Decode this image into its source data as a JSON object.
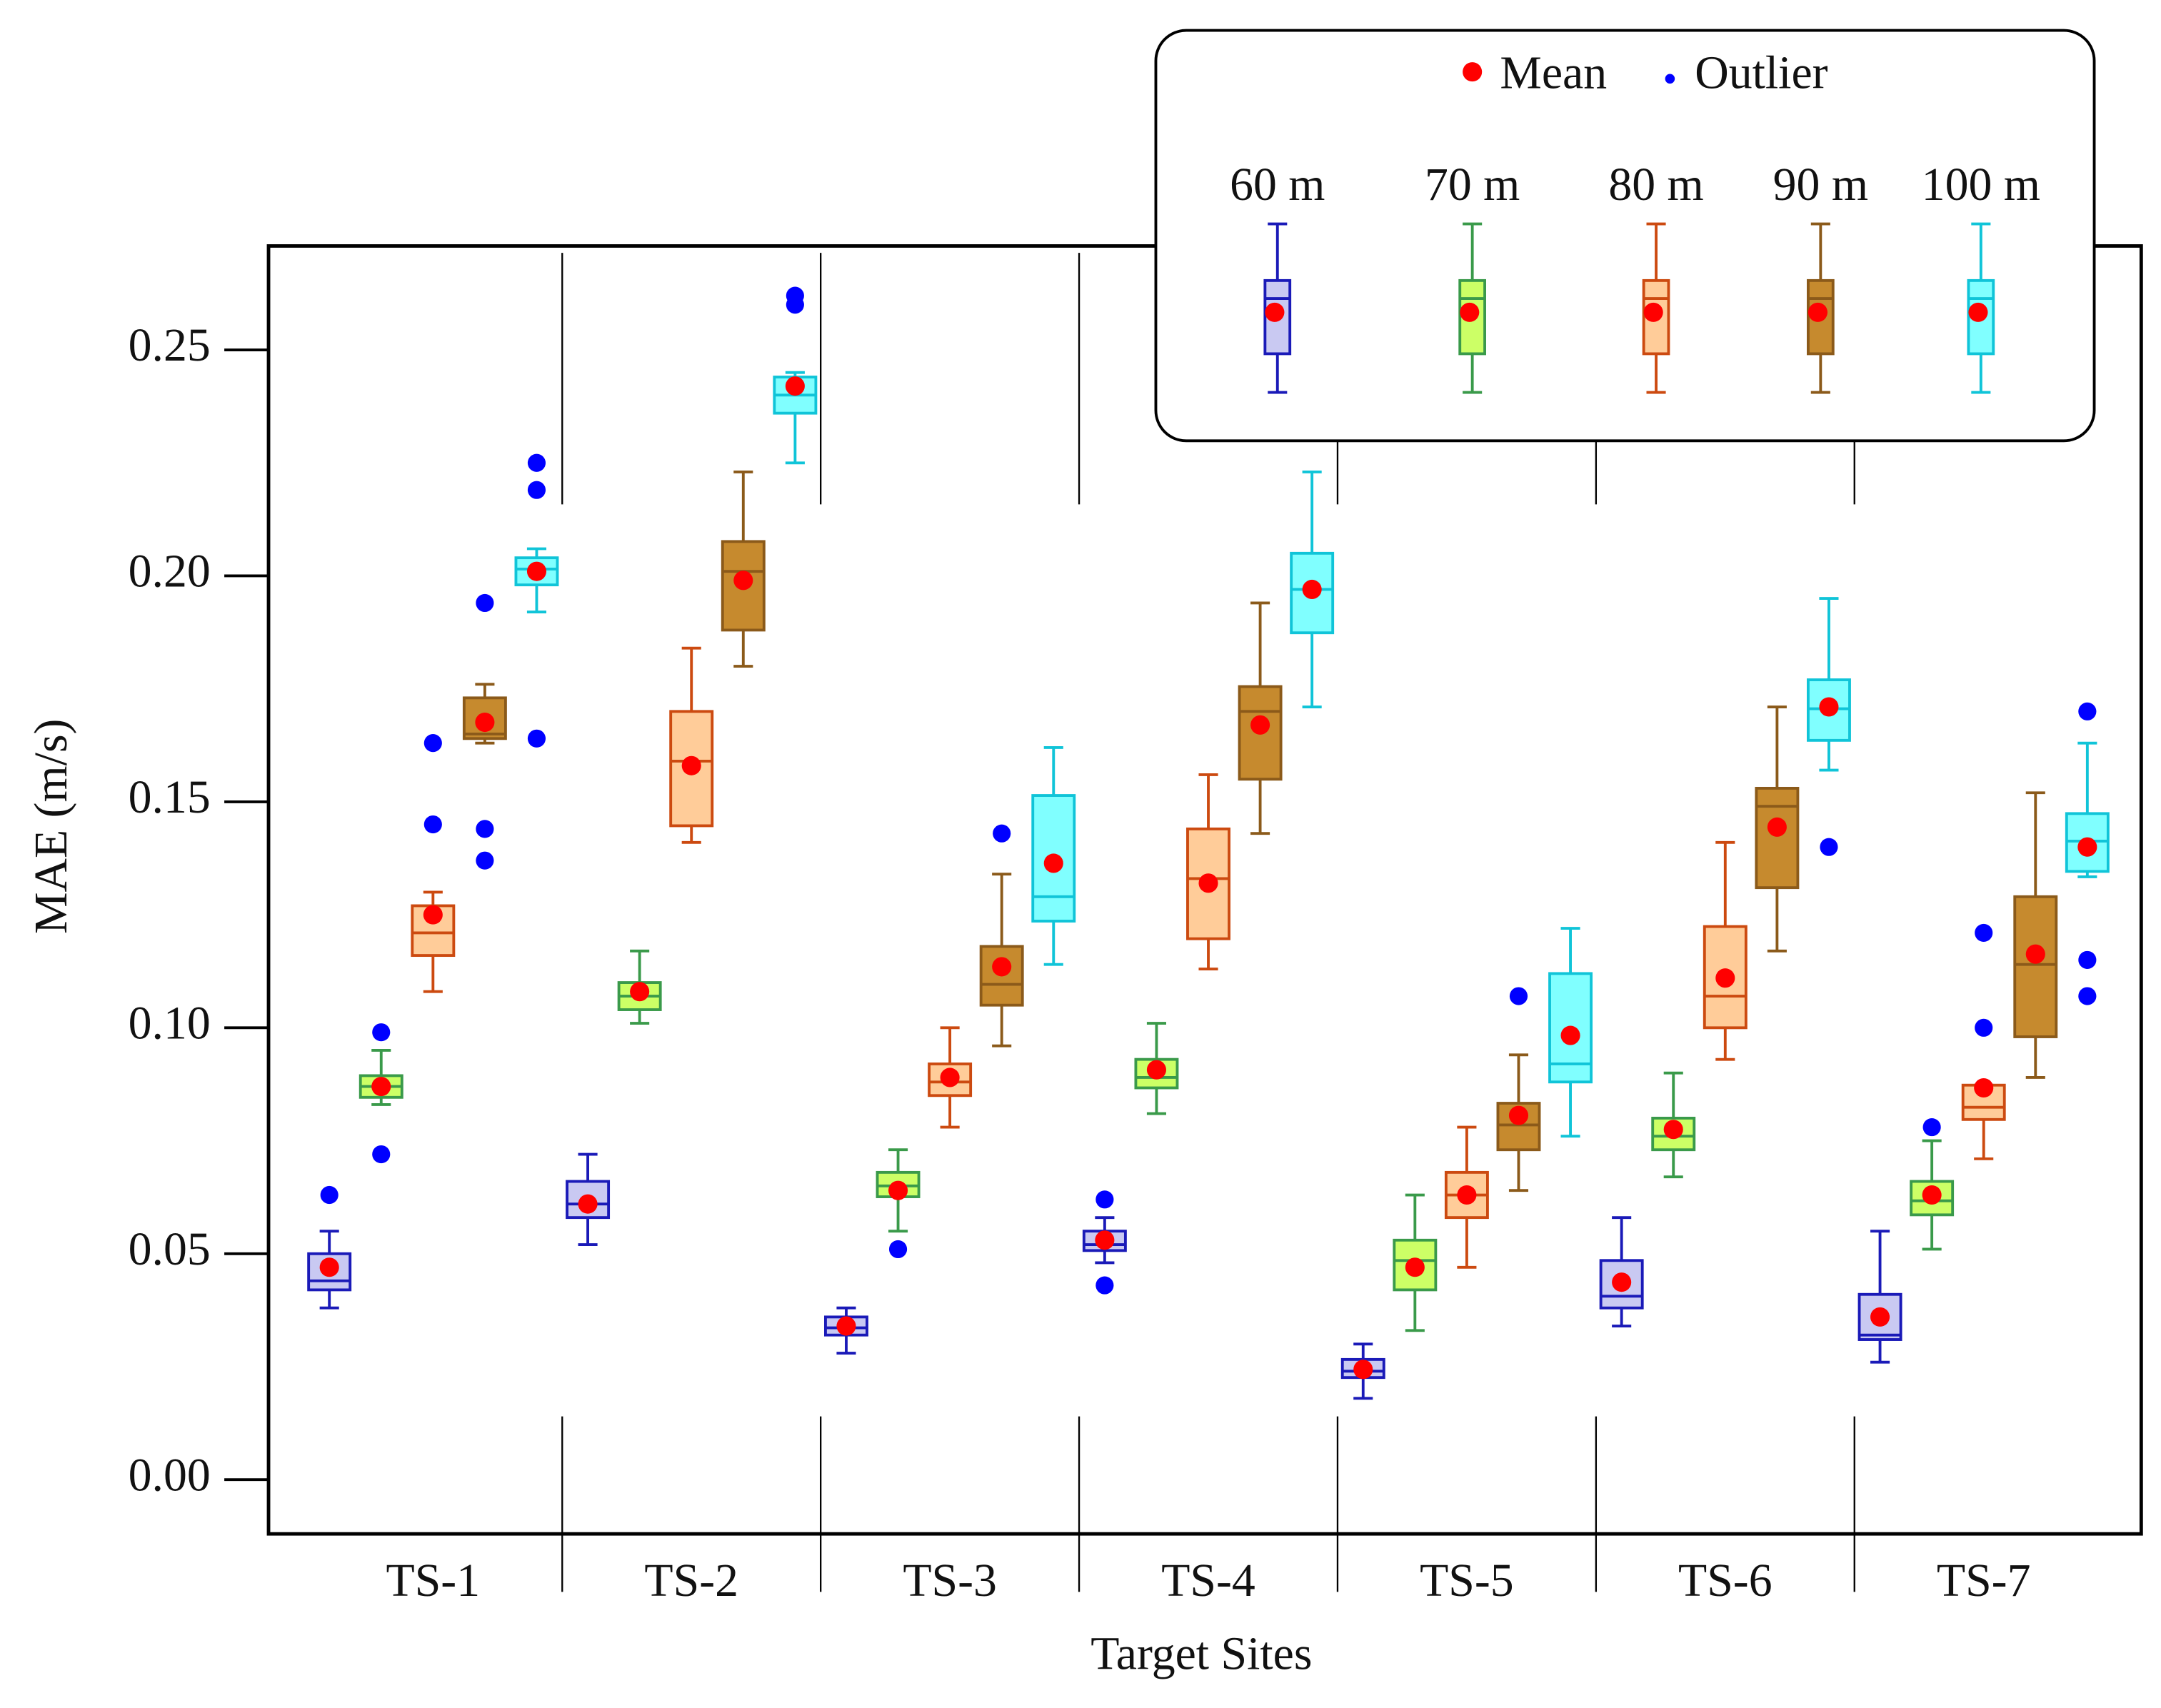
{
  "chart_data": {
    "type": "box",
    "x_label": "Target Sites",
    "y_label": "MAE (m/s)",
    "categories": [
      "TS-1",
      "TS-2",
      "TS-3",
      "TS-4",
      "TS-5",
      "TS-6",
      "TS-7"
    ],
    "ylim": [
      -0.012,
      0.273
    ],
    "yticks": [
      {
        "value": 0,
        "label": "0.00"
      },
      {
        "value": 0.05,
        "label": "0.05"
      },
      {
        "value": 0.1,
        "label": "0.10"
      },
      {
        "value": 0.15,
        "label": "0.15"
      },
      {
        "value": 0.2,
        "label": "0.20"
      },
      {
        "value": 0.25,
        "label": "0.25"
      }
    ],
    "mean_label": "Mean",
    "mean_color": "#ff0000",
    "outlier_label": "Outlier",
    "outlier_color": "#0000ff",
    "series": [
      {
        "name": "60 m",
        "color": "#1a1ab8",
        "fill": "#c9c9f2",
        "boxes": [
          {
            "low": 0.038,
            "q1": 0.042,
            "median": 0.044,
            "q3": 0.05,
            "high": 0.055,
            "mean": 0.047,
            "outliers": [
              0.063
            ]
          },
          {
            "low": 0.052,
            "q1": 0.058,
            "median": 0.061,
            "q3": 0.066,
            "high": 0.072,
            "mean": 0.061,
            "outliers": []
          },
          {
            "low": 0.028,
            "q1": 0.032,
            "median": 0.0336,
            "q3": 0.036,
            "high": 0.038,
            "mean": 0.034,
            "outliers": []
          },
          {
            "low": 0.048,
            "q1": 0.0507,
            "median": 0.052,
            "q3": 0.055,
            "high": 0.058,
            "mean": 0.053,
            "outliers": [
              0.062,
              0.043
            ]
          },
          {
            "low": 0.018,
            "q1": 0.0226,
            "median": 0.024,
            "q3": 0.0266,
            "high": 0.03,
            "mean": 0.0244,
            "outliers": []
          },
          {
            "low": 0.034,
            "q1": 0.038,
            "median": 0.0406,
            "q3": 0.0485,
            "high": 0.058,
            "mean": 0.0437,
            "outliers": []
          },
          {
            "low": 0.026,
            "q1": 0.031,
            "median": 0.032,
            "q3": 0.041,
            "high": 0.055,
            "mean": 0.036,
            "outliers": []
          }
        ]
      },
      {
        "name": "70 m",
        "color": "#3a9a4a",
        "fill": "#ccff66",
        "boxes": [
          {
            "low": 0.083,
            "q1": 0.0846,
            "median": 0.087,
            "q3": 0.0894,
            "high": 0.095,
            "mean": 0.087,
            "outliers": [
              0.099,
              0.072
            ]
          },
          {
            "low": 0.101,
            "q1": 0.104,
            "median": 0.107,
            "q3": 0.11,
            "high": 0.117,
            "mean": 0.108,
            "outliers": []
          },
          {
            "low": 0.055,
            "q1": 0.0626,
            "median": 0.065,
            "q3": 0.068,
            "high": 0.073,
            "mean": 0.064,
            "outliers": [
              0.051
            ]
          },
          {
            "low": 0.081,
            "q1": 0.0867,
            "median": 0.089,
            "q3": 0.093,
            "high": 0.101,
            "mean": 0.0907,
            "outliers": []
          },
          {
            "low": 0.033,
            "q1": 0.042,
            "median": 0.0485,
            "q3": 0.053,
            "high": 0.063,
            "mean": 0.047,
            "outliers": []
          },
          {
            "low": 0.067,
            "q1": 0.073,
            "median": 0.076,
            "q3": 0.08,
            "high": 0.09,
            "mean": 0.0775,
            "outliers": []
          },
          {
            "low": 0.051,
            "q1": 0.0586,
            "median": 0.0617,
            "q3": 0.066,
            "high": 0.075,
            "mean": 0.063,
            "outliers": [
              0.078
            ]
          }
        ]
      },
      {
        "name": "80 m",
        "color": "#cc4a10",
        "fill": "#ffcc99",
        "boxes": [
          {
            "low": 0.108,
            "q1": 0.116,
            "median": 0.121,
            "q3": 0.127,
            "high": 0.13,
            "mean": 0.125,
            "outliers": [
              0.163,
              0.145
            ]
          },
          {
            "low": 0.141,
            "q1": 0.1447,
            "median": 0.159,
            "q3": 0.17,
            "high": 0.184,
            "mean": 0.158,
            "outliers": []
          },
          {
            "low": 0.078,
            "q1": 0.085,
            "median": 0.088,
            "q3": 0.092,
            "high": 0.1,
            "mean": 0.089,
            "outliers": []
          },
          {
            "low": 0.113,
            "q1": 0.1197,
            "median": 0.133,
            "q3": 0.144,
            "high": 0.156,
            "mean": 0.132,
            "outliers": []
          },
          {
            "low": 0.047,
            "q1": 0.058,
            "median": 0.063,
            "q3": 0.068,
            "high": 0.078,
            "mean": 0.063,
            "outliers": []
          },
          {
            "low": 0.093,
            "q1": 0.1,
            "median": 0.107,
            "q3": 0.1224,
            "high": 0.141,
            "mean": 0.111,
            "outliers": []
          },
          {
            "low": 0.071,
            "q1": 0.0797,
            "median": 0.0824,
            "q3": 0.0873,
            "high": 0.0873,
            "mean": 0.0867,
            "outliers": [
              0.1,
              0.121
            ]
          }
        ]
      },
      {
        "name": "90 m",
        "color": "#8b5a1a",
        "fill": "#c68a2e",
        "boxes": [
          {
            "low": 0.163,
            "q1": 0.164,
            "median": 0.165,
            "q3": 0.173,
            "high": 0.176,
            "mean": 0.1676,
            "outliers": [
              0.194,
              0.144,
              0.137
            ]
          },
          {
            "low": 0.18,
            "q1": 0.188,
            "median": 0.201,
            "q3": 0.2076,
            "high": 0.223,
            "mean": 0.199,
            "outliers": []
          },
          {
            "low": 0.096,
            "q1": 0.105,
            "median": 0.1096,
            "q3": 0.118,
            "high": 0.134,
            "mean": 0.1135,
            "outliers": [
              0.143
            ]
          },
          {
            "low": 0.143,
            "q1": 0.155,
            "median": 0.17,
            "q3": 0.1755,
            "high": 0.194,
            "mean": 0.167,
            "outliers": []
          },
          {
            "low": 0.064,
            "q1": 0.073,
            "median": 0.0785,
            "q3": 0.0833,
            "high": 0.094,
            "mean": 0.0806,
            "outliers": [
              0.107
            ]
          },
          {
            "low": 0.117,
            "q1": 0.131,
            "median": 0.149,
            "q3": 0.153,
            "high": 0.171,
            "mean": 0.1444,
            "outliers": []
          },
          {
            "low": 0.089,
            "q1": 0.098,
            "median": 0.114,
            "q3": 0.129,
            "high": 0.152,
            "mean": 0.1163,
            "outliers": []
          }
        ]
      },
      {
        "name": "100 m",
        "color": "#10c4d8",
        "fill": "#80ffff",
        "boxes": [
          {
            "low": 0.192,
            "q1": 0.198,
            "median": 0.2015,
            "q3": 0.204,
            "high": 0.206,
            "mean": 0.201,
            "outliers": [
              0.225,
              0.219,
              0.164
            ]
          },
          {
            "low": 0.225,
            "q1": 0.236,
            "median": 0.24,
            "q3": 0.244,
            "high": 0.245,
            "mean": 0.242,
            "outliers": [
              0.262,
              0.26
            ]
          },
          {
            "low": 0.114,
            "q1": 0.1236,
            "median": 0.129,
            "q3": 0.1514,
            "high": 0.162,
            "mean": 0.1364,
            "outliers": []
          },
          {
            "low": 0.171,
            "q1": 0.1874,
            "median": 0.197,
            "q3": 0.205,
            "high": 0.223,
            "mean": 0.197,
            "outliers": []
          },
          {
            "low": 0.076,
            "q1": 0.088,
            "median": 0.092,
            "q3": 0.112,
            "high": 0.122,
            "mean": 0.0983,
            "outliers": []
          },
          {
            "low": 0.157,
            "q1": 0.1636,
            "median": 0.1706,
            "q3": 0.177,
            "high": 0.195,
            "mean": 0.171,
            "outliers": [
              0.14
            ]
          },
          {
            "low": 0.1334,
            "q1": 0.1346,
            "median": 0.1413,
            "q3": 0.1474,
            "high": 0.163,
            "mean": 0.14,
            "outliers": [
              0.17,
              0.115,
              0.107
            ]
          }
        ]
      }
    ]
  }
}
